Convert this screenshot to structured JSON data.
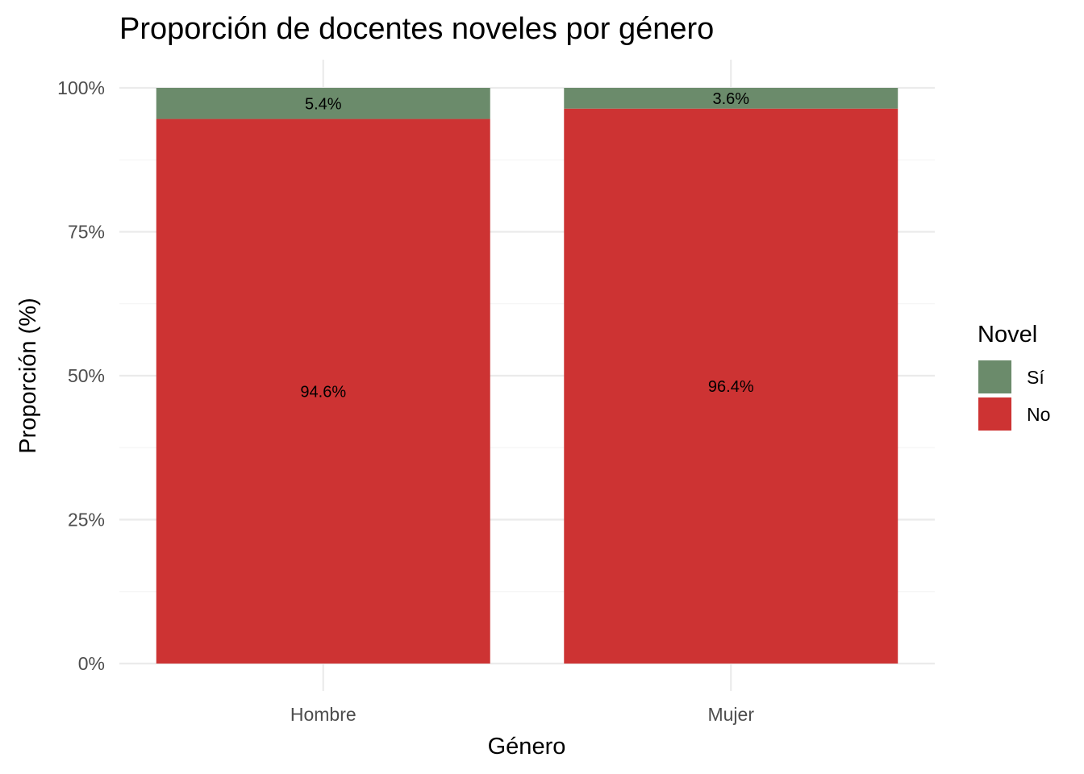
{
  "chart_data": {
    "type": "bar",
    "stacked": true,
    "title": "Proporción de docentes noveles por género",
    "xlabel": "Género",
    "ylabel": "Proporción (%)",
    "categories": [
      "Hombre",
      "Mujer"
    ],
    "series": [
      {
        "name": "No",
        "values": [
          0.946,
          0.964
        ],
        "labels": [
          "94.6%",
          "96.4%"
        ],
        "color": "#cd3333"
      },
      {
        "name": "Sí",
        "values": [
          0.054,
          0.036
        ],
        "labels": [
          "5.4%",
          "3.6%"
        ],
        "color": "#6b8b6b"
      }
    ],
    "ylim": [
      0,
      1
    ],
    "yticks": [
      0,
      0.25,
      0.5,
      0.75,
      1.0
    ],
    "ytick_labels": [
      "0%",
      "25%",
      "50%",
      "75%",
      "100%"
    ],
    "grid": true,
    "legend": {
      "title": "Novel",
      "position": "right",
      "entries": [
        {
          "label": "Sí",
          "color": "#6b8b6b"
        },
        {
          "label": "No",
          "color": "#cd3333"
        }
      ]
    }
  }
}
